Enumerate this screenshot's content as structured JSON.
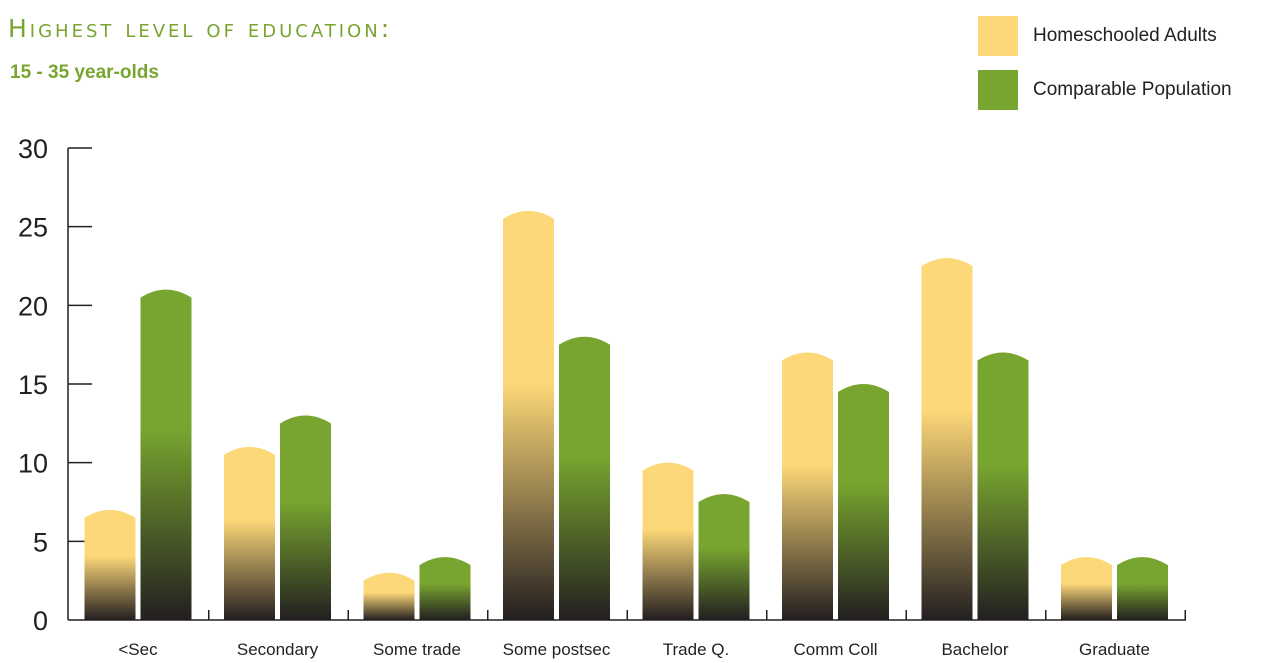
{
  "chart_data": {
    "type": "bar",
    "title": "Highest level of education:",
    "subtitle": "15 - 35 year-olds",
    "categories": [
      "<Sec",
      "Secondary",
      "Some trade",
      "Some postsec",
      "Trade Q.",
      "Comm Coll",
      "Bachelor",
      "Graduate"
    ],
    "series": [
      {
        "name": "Homeschooled Adults",
        "values": [
          7,
          11,
          3,
          26,
          10,
          17,
          23,
          4
        ],
        "color": "#fdd878"
      },
      {
        "name": "Comparable Population",
        "values": [
          21,
          13,
          4,
          18,
          8,
          15,
          17,
          4
        ],
        "color": "#78a52f"
      }
    ],
    "bar_bottom_color": "#231f20",
    "yticks": [
      0,
      5,
      10,
      15,
      20,
      25,
      30
    ],
    "ylim": [
      0,
      30
    ],
    "grid": false,
    "legend_position": "top-right"
  }
}
